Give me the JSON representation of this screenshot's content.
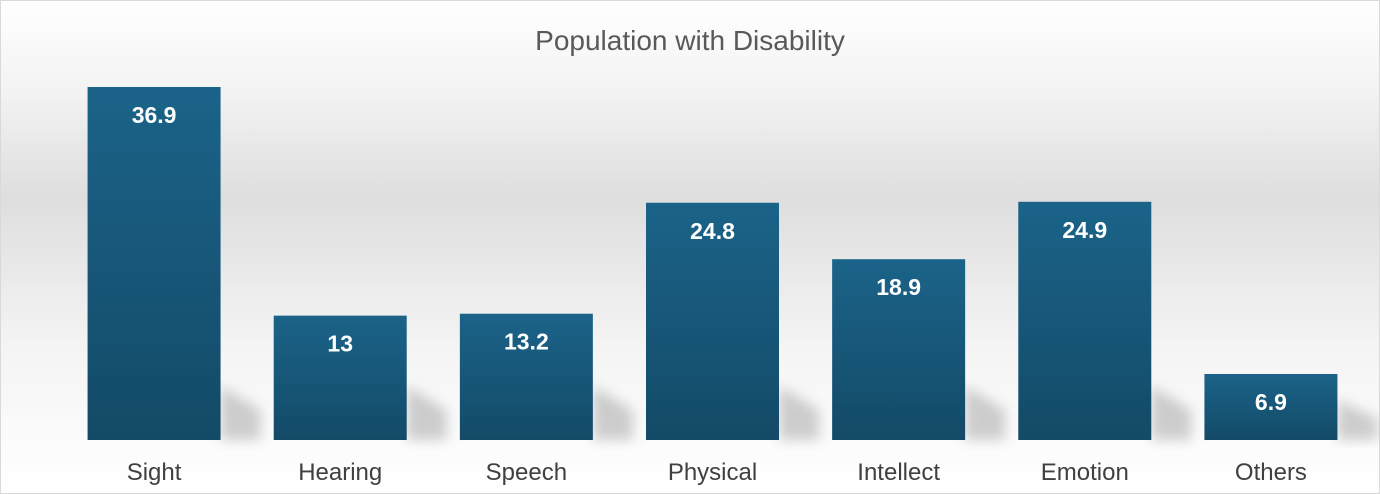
{
  "chart_data": {
    "type": "bar",
    "title": "Population with Disability",
    "categories": [
      "Sight",
      "Hearing",
      "Speech",
      "Physical",
      "Intellect",
      "Emotion",
      "Others"
    ],
    "values": [
      36.9,
      13,
      13.2,
      24.8,
      18.9,
      24.9,
      6.9
    ],
    "value_labels": [
      "36.9",
      "13",
      "13.2",
      "24.8",
      "18.9",
      "24.9",
      "6.9"
    ],
    "xlabel": "",
    "ylabel": "",
    "ylim": [
      0,
      40
    ],
    "grid": false,
    "legend": "none",
    "colors": {
      "bar_top": "#1b6389",
      "bar_bottom": "#134a67",
      "value_label": "#ffffff",
      "category_label": "#404040",
      "title": "#595959"
    }
  }
}
